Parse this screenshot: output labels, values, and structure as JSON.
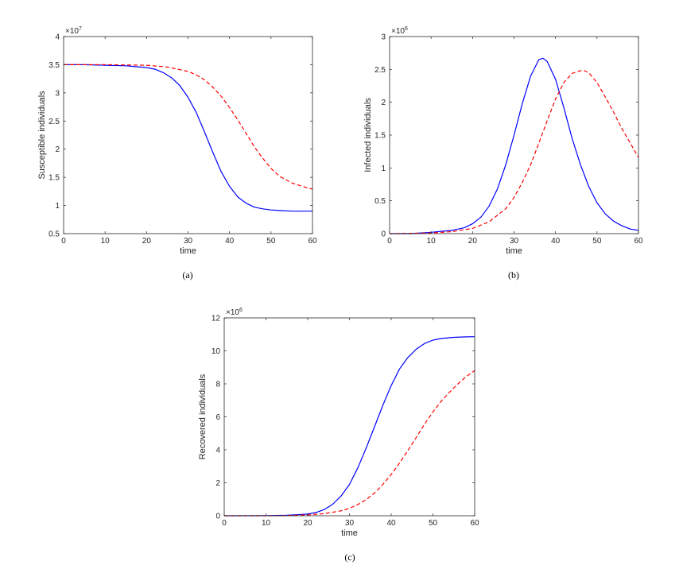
{
  "chart_data": [
    {
      "id": "a",
      "type": "line",
      "caption": "(a)",
      "xlabel": "time",
      "ylabel": "Susceptible individuals",
      "y_exponent_prefix": "×10",
      "y_exponent": "7",
      "xlim": [
        0,
        60
      ],
      "ylim": [
        0.5,
        4
      ],
      "xticks": [
        0,
        10,
        20,
        30,
        40,
        50,
        60
      ],
      "xtick_labels": [
        "0",
        "10",
        "20",
        "30",
        "40",
        "50",
        "60"
      ],
      "yticks": [
        0.5,
        1,
        1.5,
        2,
        2.5,
        3,
        3.5,
        4
      ],
      "ytick_labels": [
        "0.5",
        "1",
        "1.5",
        "2",
        "2.5",
        "3",
        "3.5",
        "4"
      ],
      "grid": false,
      "series": [
        {
          "style": "solid",
          "color": "#0000ff",
          "x": [
            0,
            5,
            10,
            15,
            20,
            22,
            24,
            26,
            28,
            30,
            32,
            34,
            36,
            38,
            40,
            42,
            44,
            46,
            48,
            50,
            52,
            55,
            58,
            60
          ],
          "y": [
            3.5,
            3.5,
            3.49,
            3.48,
            3.45,
            3.42,
            3.36,
            3.27,
            3.13,
            2.92,
            2.65,
            2.3,
            1.94,
            1.6,
            1.34,
            1.15,
            1.04,
            0.97,
            0.94,
            0.92,
            0.91,
            0.9,
            0.9,
            0.9
          ]
        },
        {
          "style": "dashed",
          "color": "#ff0000",
          "x": [
            0,
            10,
            20,
            25,
            30,
            32,
            34,
            36,
            38,
            40,
            42,
            44,
            46,
            48,
            50,
            52,
            55,
            58,
            60
          ],
          "y": [
            3.5,
            3.5,
            3.49,
            3.46,
            3.38,
            3.32,
            3.23,
            3.1,
            2.94,
            2.74,
            2.52,
            2.28,
            2.04,
            1.84,
            1.66,
            1.52,
            1.4,
            1.33,
            1.29
          ]
        }
      ]
    },
    {
      "id": "b",
      "type": "line",
      "caption": "(b)",
      "xlabel": "time",
      "ylabel": "Infected individuals",
      "y_exponent_prefix": "×10",
      "y_exponent": "6",
      "xlim": [
        0,
        60
      ],
      "ylim": [
        0,
        3
      ],
      "xticks": [
        0,
        10,
        20,
        30,
        40,
        50,
        60
      ],
      "xtick_labels": [
        "0",
        "10",
        "20",
        "30",
        "40",
        "50",
        "60"
      ],
      "yticks": [
        0,
        0.5,
        1,
        1.5,
        2,
        2.5,
        3
      ],
      "ytick_labels": [
        "0",
        "0.5",
        "1",
        "1.5",
        "2",
        "2.5",
        "3"
      ],
      "grid": false,
      "series": [
        {
          "style": "solid",
          "color": "#0000ff",
          "x": [
            0,
            5,
            10,
            15,
            18,
            20,
            22,
            24,
            26,
            28,
            30,
            32,
            34,
            36,
            37,
            38,
            40,
            42,
            44,
            46,
            48,
            50,
            52,
            54,
            56,
            58,
            60
          ],
          "y": [
            0.0,
            0.0,
            0.02,
            0.05,
            0.09,
            0.15,
            0.25,
            0.42,
            0.68,
            1.05,
            1.5,
            1.98,
            2.4,
            2.65,
            2.67,
            2.62,
            2.35,
            1.92,
            1.45,
            1.05,
            0.72,
            0.47,
            0.3,
            0.19,
            0.12,
            0.07,
            0.05
          ]
        },
        {
          "style": "dashed",
          "color": "#ff0000",
          "x": [
            0,
            10,
            15,
            20,
            24,
            28,
            30,
            32,
            34,
            36,
            38,
            40,
            42,
            44,
            46,
            47,
            48,
            50,
            52,
            54,
            56,
            58,
            60
          ],
          "y": [
            0.0,
            0.01,
            0.03,
            0.08,
            0.18,
            0.38,
            0.55,
            0.78,
            1.05,
            1.38,
            1.72,
            2.05,
            2.3,
            2.44,
            2.48,
            2.48,
            2.45,
            2.3,
            2.08,
            1.85,
            1.6,
            1.38,
            1.16
          ]
        }
      ]
    },
    {
      "id": "c",
      "type": "line",
      "caption": "(c)",
      "xlabel": "time",
      "ylabel": "Recovered individuals",
      "y_exponent_prefix": "×10",
      "y_exponent": "6",
      "xlim": [
        0,
        60
      ],
      "ylim": [
        0,
        12
      ],
      "xticks": [
        0,
        10,
        20,
        30,
        40,
        50,
        60
      ],
      "xtick_labels": [
        "0",
        "10",
        "20",
        "30",
        "40",
        "50",
        "60"
      ],
      "yticks": [
        0,
        2,
        4,
        6,
        8,
        10,
        12
      ],
      "ytick_labels": [
        "0",
        "2",
        "4",
        "6",
        "8",
        "10",
        "12"
      ],
      "grid": false,
      "series": [
        {
          "style": "solid",
          "color": "#0000ff",
          "x": [
            0,
            10,
            15,
            20,
            22,
            24,
            26,
            28,
            30,
            32,
            34,
            36,
            38,
            40,
            42,
            44,
            46,
            48,
            50,
            52,
            55,
            58,
            60
          ],
          "y": [
            0.0,
            0.01,
            0.03,
            0.1,
            0.2,
            0.38,
            0.7,
            1.2,
            1.9,
            2.9,
            4.1,
            5.4,
            6.7,
            7.9,
            8.9,
            9.6,
            10.1,
            10.45,
            10.65,
            10.75,
            10.82,
            10.85,
            10.86
          ]
        },
        {
          "style": "dashed",
          "color": "#ff0000",
          "x": [
            0,
            10,
            15,
            20,
            24,
            28,
            30,
            32,
            34,
            36,
            38,
            40,
            42,
            44,
            46,
            48,
            50,
            52,
            54,
            56,
            58,
            60
          ],
          "y": [
            0.0,
            0.0,
            0.01,
            0.05,
            0.13,
            0.3,
            0.45,
            0.68,
            0.98,
            1.38,
            1.9,
            2.5,
            3.2,
            3.95,
            4.75,
            5.55,
            6.3,
            6.95,
            7.5,
            8.0,
            8.45,
            8.8
          ]
        }
      ]
    }
  ]
}
